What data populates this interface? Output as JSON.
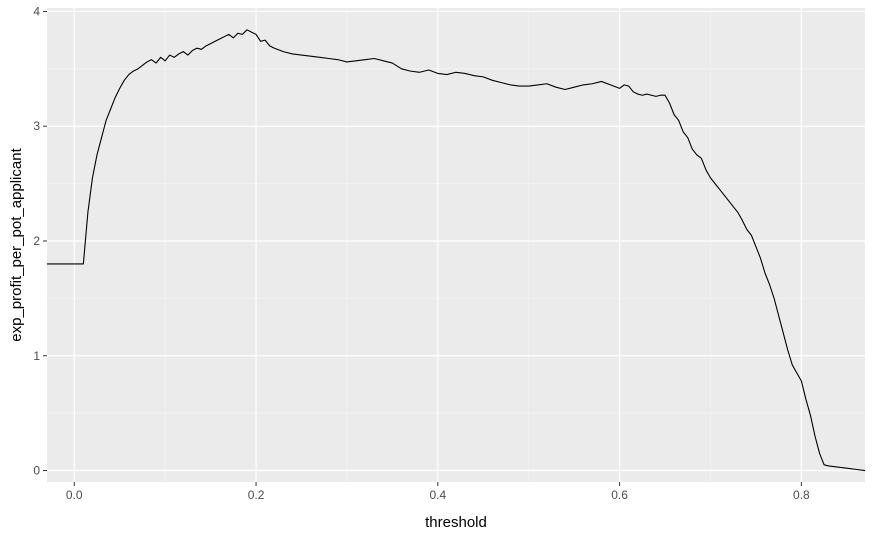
{
  "chart_data": {
    "type": "line",
    "title": "",
    "xlabel": "threshold",
    "ylabel": "exp_profit_per_pot_applicant",
    "xlim": [
      -0.03,
      0.87
    ],
    "ylim": [
      -0.1,
      4.03
    ],
    "x_ticks": [
      0.0,
      0.2,
      0.4,
      0.6,
      0.8
    ],
    "x_tick_labels": [
      "0.0",
      "0.2",
      "0.4",
      "0.6",
      "0.8"
    ],
    "y_ticks": [
      0,
      1,
      2,
      3,
      4
    ],
    "y_tick_labels": [
      "0",
      "1",
      "2",
      "3",
      "4"
    ],
    "grid": true,
    "colors": {
      "panel_background": "#ebebeb",
      "grid_major": "#ffffff",
      "grid_minor": "#f5f5f5",
      "line": "#000000"
    },
    "series": [
      {
        "x": [
          -0.03,
          0.01,
          0.012,
          0.015,
          0.02,
          0.025,
          0.03,
          0.035,
          0.04,
          0.045,
          0.05,
          0.055,
          0.06,
          0.065,
          0.07,
          0.075,
          0.08,
          0.085,
          0.09,
          0.095,
          0.1,
          0.105,
          0.11,
          0.115,
          0.12,
          0.125,
          0.13,
          0.135,
          0.14,
          0.145,
          0.15,
          0.155,
          0.16,
          0.165,
          0.17,
          0.175,
          0.18,
          0.185,
          0.19,
          0.195,
          0.2,
          0.205,
          0.21,
          0.215,
          0.22,
          0.23,
          0.24,
          0.25,
          0.26,
          0.27,
          0.28,
          0.29,
          0.3,
          0.31,
          0.32,
          0.33,
          0.34,
          0.35,
          0.36,
          0.37,
          0.38,
          0.39,
          0.4,
          0.41,
          0.42,
          0.43,
          0.44,
          0.45,
          0.46,
          0.47,
          0.48,
          0.49,
          0.5,
          0.51,
          0.52,
          0.53,
          0.54,
          0.55,
          0.56,
          0.57,
          0.58,
          0.59,
          0.6,
          0.605,
          0.61,
          0.615,
          0.62,
          0.625,
          0.63,
          0.635,
          0.64,
          0.645,
          0.65,
          0.655,
          0.66,
          0.665,
          0.67,
          0.675,
          0.68,
          0.685,
          0.69,
          0.695,
          0.7,
          0.705,
          0.71,
          0.715,
          0.72,
          0.725,
          0.73,
          0.735,
          0.74,
          0.745,
          0.75,
          0.755,
          0.76,
          0.765,
          0.77,
          0.775,
          0.78,
          0.785,
          0.79,
          0.795,
          0.8,
          0.805,
          0.81,
          0.815,
          0.82,
          0.825,
          0.83,
          0.84,
          0.85,
          0.86,
          0.87
        ],
        "y": [
          1.8,
          1.8,
          1.98,
          2.25,
          2.55,
          2.75,
          2.9,
          3.05,
          3.15,
          3.25,
          3.33,
          3.4,
          3.45,
          3.48,
          3.5,
          3.53,
          3.56,
          3.58,
          3.55,
          3.6,
          3.57,
          3.62,
          3.6,
          3.63,
          3.65,
          3.62,
          3.66,
          3.68,
          3.67,
          3.7,
          3.72,
          3.74,
          3.76,
          3.78,
          3.8,
          3.77,
          3.81,
          3.8,
          3.84,
          3.82,
          3.8,
          3.74,
          3.75,
          3.7,
          3.68,
          3.65,
          3.63,
          3.62,
          3.61,
          3.6,
          3.59,
          3.58,
          3.56,
          3.57,
          3.58,
          3.59,
          3.57,
          3.55,
          3.5,
          3.48,
          3.47,
          3.49,
          3.46,
          3.45,
          3.47,
          3.46,
          3.44,
          3.43,
          3.4,
          3.38,
          3.36,
          3.35,
          3.35,
          3.36,
          3.37,
          3.34,
          3.32,
          3.34,
          3.36,
          3.37,
          3.39,
          3.36,
          3.33,
          3.36,
          3.35,
          3.3,
          3.28,
          3.27,
          3.28,
          3.27,
          3.26,
          3.27,
          3.27,
          3.2,
          3.1,
          3.05,
          2.95,
          2.9,
          2.8,
          2.75,
          2.72,
          2.62,
          2.55,
          2.5,
          2.45,
          2.4,
          2.35,
          2.3,
          2.25,
          2.18,
          2.1,
          2.05,
          1.95,
          1.85,
          1.72,
          1.62,
          1.5,
          1.35,
          1.2,
          1.05,
          0.92,
          0.85,
          0.78,
          0.62,
          0.48,
          0.3,
          0.15,
          0.05,
          0.04,
          0.03,
          0.02,
          0.01,
          0.0
        ]
      }
    ]
  }
}
